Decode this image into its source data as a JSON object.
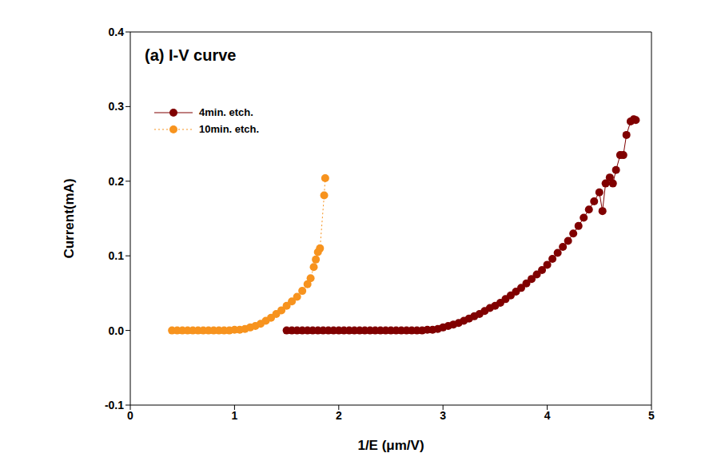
{
  "chart_data": {
    "type": "scatter",
    "title": "(a) I-V curve",
    "x_label": "1/E (μm/V)",
    "y_label": "Current(mA)",
    "xlim": [
      0,
      5
    ],
    "ylim": [
      -0.1,
      0.4
    ],
    "xticks": [
      0,
      1,
      2,
      3,
      4,
      5
    ],
    "yticks": [
      -0.1,
      {
        "value": 0,
        "label": "0.0"
      },
      0.1,
      0.2,
      0.3,
      0.4
    ],
    "grid": false,
    "legend": "upper left",
    "series": [
      {
        "name": "4min. etch.",
        "color": "#800000",
        "marker": "circle",
        "line_style": "solid",
        "x": [
          1.5,
          1.55,
          1.6,
          1.65,
          1.7,
          1.75,
          1.8,
          1.85,
          1.9,
          1.95,
          2.0,
          2.05,
          2.1,
          2.15,
          2.2,
          2.25,
          2.3,
          2.35,
          2.4,
          2.45,
          2.5,
          2.55,
          2.6,
          2.65,
          2.7,
          2.75,
          2.8,
          2.85,
          2.9,
          2.95,
          3.0,
          3.05,
          3.1,
          3.15,
          3.2,
          3.25,
          3.3,
          3.35,
          3.4,
          3.45,
          3.5,
          3.55,
          3.6,
          3.65,
          3.7,
          3.75,
          3.8,
          3.85,
          3.9,
          3.95,
          4.0,
          4.05,
          4.1,
          4.15,
          4.2,
          4.25,
          4.3,
          4.35,
          4.4,
          4.45,
          4.5,
          4.53,
          4.56,
          4.6,
          4.63,
          4.66,
          4.7,
          4.73,
          4.76,
          4.8,
          4.83,
          4.85
        ],
        "values": [
          0,
          0,
          0,
          0,
          0,
          0,
          0,
          0,
          0,
          0,
          0,
          0,
          0,
          0,
          0,
          0,
          0,
          0,
          0,
          0,
          0,
          0,
          0,
          0,
          0,
          0,
          0,
          0.001,
          0.001,
          0.002,
          0.004,
          0.006,
          0.008,
          0.01,
          0.013,
          0.016,
          0.019,
          0.022,
          0.026,
          0.03,
          0.033,
          0.037,
          0.042,
          0.047,
          0.052,
          0.057,
          0.063,
          0.069,
          0.075,
          0.081,
          0.088,
          0.096,
          0.104,
          0.112,
          0.12,
          0.13,
          0.14,
          0.151,
          0.162,
          0.173,
          0.185,
          0.16,
          0.197,
          0.205,
          0.197,
          0.215,
          0.235,
          0.235,
          0.262,
          0.28,
          0.283,
          0.282
        ]
      },
      {
        "name": "10min. etch.",
        "color": "#f7931e",
        "marker": "circle",
        "line_style": "dotted",
        "x": [
          0.4,
          0.45,
          0.5,
          0.55,
          0.6,
          0.65,
          0.7,
          0.75,
          0.8,
          0.85,
          0.9,
          0.95,
          1.0,
          1.05,
          1.1,
          1.15,
          1.2,
          1.25,
          1.3,
          1.35,
          1.4,
          1.45,
          1.5,
          1.55,
          1.6,
          1.65,
          1.7,
          1.73,
          1.76,
          1.78,
          1.8,
          1.82,
          1.86,
          1.87
        ],
        "values": [
          0,
          0,
          0,
          0,
          0,
          0,
          0,
          0,
          0,
          0,
          0,
          0,
          0.001,
          0.001,
          0.002,
          0.004,
          0.006,
          0.009,
          0.013,
          0.017,
          0.022,
          0.027,
          0.033,
          0.039,
          0.045,
          0.053,
          0.062,
          0.07,
          0.085,
          0.095,
          0.105,
          0.11,
          0.181,
          0.204
        ]
      }
    ]
  }
}
